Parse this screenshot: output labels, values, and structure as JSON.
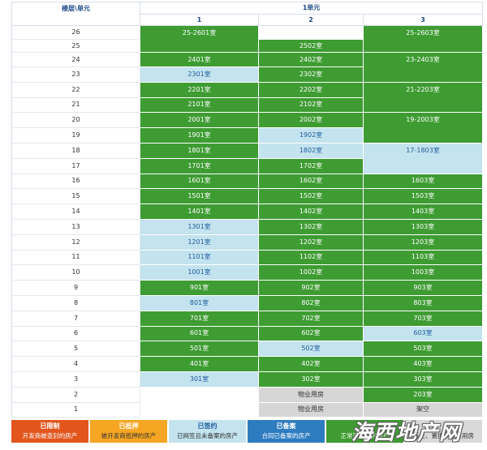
{
  "header": {
    "corner_label": "楼层\\单元",
    "unit_group_label": "1单元",
    "columns": [
      "1",
      "2",
      "3"
    ]
  },
  "status_colors": {
    "available": {
      "bg": "#3e9c32",
      "fg": "#ffffff"
    },
    "signed": {
      "bg": "#c3e3ee",
      "fg": "#1f5c9e"
    },
    "not_for_sale": {
      "bg": "#d6d6d6",
      "fg": "#333333"
    },
    "none": {
      "bg": "#ffffff",
      "fg": "#333333"
    }
  },
  "floors": [
    {
      "floor": "26",
      "cells": [
        {
          "text": "25-2601室",
          "status": "available",
          "floor_span": 2
        },
        {
          "text": "",
          "status": "none"
        },
        {
          "text": "25-2603室",
          "status": "available",
          "floor_span": 2
        }
      ]
    },
    {
      "floor": "25",
      "cells": [
        {
          "text": "2502室",
          "status": "available"
        }
      ]
    },
    {
      "floor": "24",
      "cells": [
        {
          "text": "2401室",
          "status": "available"
        },
        {
          "text": "2402室",
          "status": "available"
        },
        {
          "text": "23-2403室",
          "status": "available",
          "floor_span": 2
        }
      ]
    },
    {
      "floor": "23",
      "cells": [
        {
          "text": "2301室",
          "status": "signed"
        },
        {
          "text": "2302室",
          "status": "available"
        }
      ]
    },
    {
      "floor": "22",
      "cells": [
        {
          "text": "2201室",
          "status": "available"
        },
        {
          "text": "2202室",
          "status": "available"
        },
        {
          "text": "21-2203室",
          "status": "available",
          "floor_span": 2
        }
      ]
    },
    {
      "floor": "21",
      "cells": [
        {
          "text": "2101室",
          "status": "available"
        },
        {
          "text": "2102室",
          "status": "available"
        }
      ]
    },
    {
      "floor": "20",
      "cells": [
        {
          "text": "2001室",
          "status": "available"
        },
        {
          "text": "2002室",
          "status": "available"
        },
        {
          "text": "19-2003室",
          "status": "available",
          "floor_span": 2
        }
      ]
    },
    {
      "floor": "19",
      "cells": [
        {
          "text": "1901室",
          "status": "available"
        },
        {
          "text": "1902室",
          "status": "signed"
        }
      ]
    },
    {
      "floor": "18",
      "cells": [
        {
          "text": "1801室",
          "status": "available"
        },
        {
          "text": "1802室",
          "status": "signed"
        },
        {
          "text": "17-1803室",
          "status": "signed",
          "floor_span": 2
        }
      ]
    },
    {
      "floor": "17",
      "cells": [
        {
          "text": "1701室",
          "status": "available"
        },
        {
          "text": "1702室",
          "status": "available"
        }
      ]
    },
    {
      "floor": "16",
      "cells": [
        {
          "text": "1601室",
          "status": "available"
        },
        {
          "text": "1602室",
          "status": "available"
        },
        {
          "text": "1603室",
          "status": "available"
        }
      ]
    },
    {
      "floor": "15",
      "cells": [
        {
          "text": "1501室",
          "status": "available"
        },
        {
          "text": "1502室",
          "status": "available"
        },
        {
          "text": "1503室",
          "status": "available"
        }
      ]
    },
    {
      "floor": "14",
      "cells": [
        {
          "text": "1401室",
          "status": "available"
        },
        {
          "text": "1402室",
          "status": "available"
        },
        {
          "text": "1403室",
          "status": "available"
        }
      ]
    },
    {
      "floor": "13",
      "cells": [
        {
          "text": "1301室",
          "status": "signed"
        },
        {
          "text": "1302室",
          "status": "available"
        },
        {
          "text": "1303室",
          "status": "available"
        }
      ]
    },
    {
      "floor": "12",
      "cells": [
        {
          "text": "1201室",
          "status": "signed"
        },
        {
          "text": "1202室",
          "status": "available"
        },
        {
          "text": "1203室",
          "status": "available"
        }
      ]
    },
    {
      "floor": "11",
      "cells": [
        {
          "text": "1101室",
          "status": "signed"
        },
        {
          "text": "1102室",
          "status": "available"
        },
        {
          "text": "1103室",
          "status": "available"
        }
      ]
    },
    {
      "floor": "10",
      "cells": [
        {
          "text": "1001室",
          "status": "signed"
        },
        {
          "text": "1002室",
          "status": "available"
        },
        {
          "text": "1003室",
          "status": "available"
        }
      ]
    },
    {
      "floor": "9",
      "cells": [
        {
          "text": "901室",
          "status": "available"
        },
        {
          "text": "902室",
          "status": "available"
        },
        {
          "text": "903室",
          "status": "available"
        }
      ]
    },
    {
      "floor": "8",
      "cells": [
        {
          "text": "801室",
          "status": "signed"
        },
        {
          "text": "802室",
          "status": "available"
        },
        {
          "text": "803室",
          "status": "available"
        }
      ]
    },
    {
      "floor": "7",
      "cells": [
        {
          "text": "701室",
          "status": "available"
        },
        {
          "text": "702室",
          "status": "available"
        },
        {
          "text": "703室",
          "status": "available"
        }
      ]
    },
    {
      "floor": "6",
      "cells": [
        {
          "text": "601室",
          "status": "available"
        },
        {
          "text": "602室",
          "status": "available"
        },
        {
          "text": "603室",
          "status": "signed"
        }
      ]
    },
    {
      "floor": "5",
      "cells": [
        {
          "text": "501室",
          "status": "available"
        },
        {
          "text": "502室",
          "status": "signed"
        },
        {
          "text": "503室",
          "status": "available"
        }
      ]
    },
    {
      "floor": "4",
      "cells": [
        {
          "text": "401室",
          "status": "available"
        },
        {
          "text": "402室",
          "status": "available"
        },
        {
          "text": "403室",
          "status": "available"
        }
      ]
    },
    {
      "floor": "3",
      "cells": [
        {
          "text": "301室",
          "status": "signed"
        },
        {
          "text": "302室",
          "status": "available"
        },
        {
          "text": "303室",
          "status": "available"
        }
      ]
    },
    {
      "floor": "2",
      "cells": [
        {
          "text": "",
          "status": "none"
        },
        {
          "text": "物业用房",
          "status": "not_for_sale"
        },
        {
          "text": "203室",
          "status": "available"
        }
      ]
    },
    {
      "floor": "1",
      "cells": [
        {
          "text": "",
          "status": "none"
        },
        {
          "text": "物业用房",
          "status": "not_for_sale"
        },
        {
          "text": "架空",
          "status": "not_for_sale"
        }
      ]
    }
  ],
  "legend": [
    {
      "title": "已限制",
      "desc": "开发商被查封的房产",
      "bg": "#e2561d",
      "title_color": "#ffffff",
      "desc_color": "#ffffff"
    },
    {
      "title": "已抵押",
      "desc": "被开发商抵押的房产",
      "bg": "#f6a623",
      "title_color": "#ffffff",
      "desc_color": "#333333"
    },
    {
      "title": "已签约",
      "desc": "已网签且未备案的房产",
      "bg": "#c3e3ee",
      "title_color": "#1f5c9e",
      "desc_color": "#333333"
    },
    {
      "title": "已备案",
      "desc": "合同已备案的房产",
      "bg": "#2e7cc0",
      "title_color": "#ffffff",
      "desc_color": "#ffffff"
    },
    {
      "desc": "正常可销售的房产",
      "bg": "#3e9c32",
      "desc_color": "#ffffff"
    },
    {
      "desc": "拆迁、置换、配套用房",
      "bg": "#d9d9d9",
      "desc_color": "#333333"
    }
  ],
  "watermark": "海西地产网"
}
